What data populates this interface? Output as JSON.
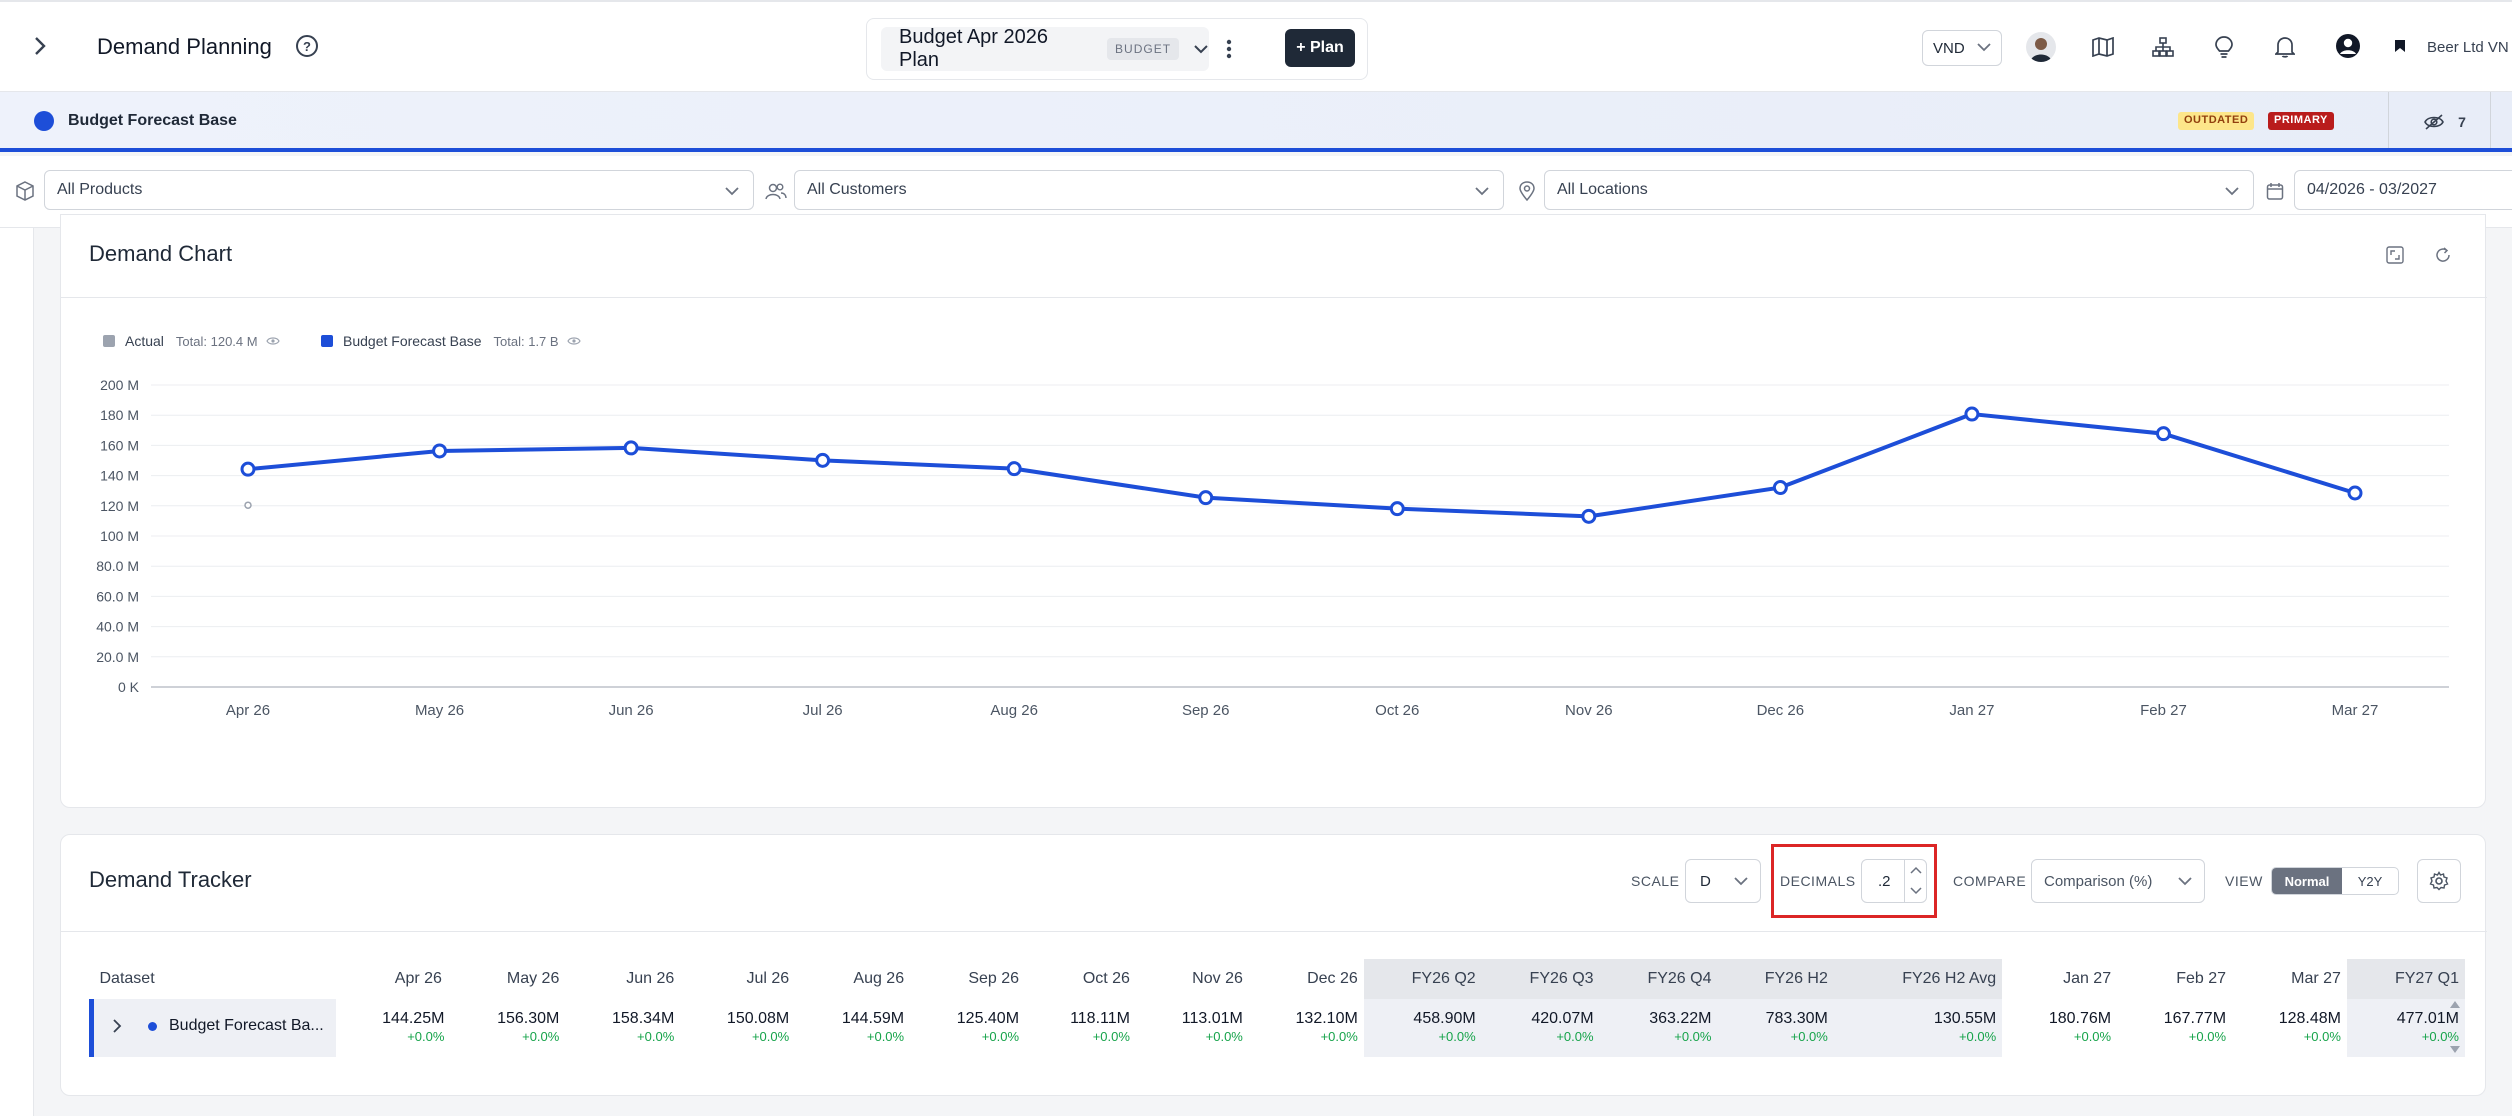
{
  "header": {
    "title": "Demand Planning",
    "plan_name": "Budget Apr 2026 Plan",
    "plan_badge": "BUDGET",
    "add_plan_label": "+ Plan",
    "currency": "VND",
    "company": "Beer Ltd VN"
  },
  "scenario": {
    "name": "Budget Forecast Base",
    "outdated_badge": "OUTDATED",
    "primary_badge": "PRIMARY",
    "hidden_count": "7"
  },
  "filters": {
    "products": "All Products",
    "customers": "All Customers",
    "locations": "All Locations",
    "date_range": "04/2026 - 03/2027"
  },
  "chart_card": {
    "title": "Demand Chart",
    "legend": [
      {
        "name": "Actual",
        "total": "Total: 120.4 M",
        "color": "#9ca3af"
      },
      {
        "name": "Budget Forecast Base",
        "total": "Total: 1.7 B",
        "color": "#1d4ed8"
      }
    ]
  },
  "chart_data": {
    "type": "line",
    "categories": [
      "Apr 26",
      "May 26",
      "Jun 26",
      "Jul 26",
      "Aug 26",
      "Sep 26",
      "Oct 26",
      "Nov 26",
      "Dec 26",
      "Jan 27",
      "Feb 27",
      "Mar 27"
    ],
    "series": [
      {
        "name": "Budget Forecast Base",
        "color": "#1d4ed8",
        "values": [
          144.25,
          156.3,
          158.34,
          150.08,
          144.59,
          125.4,
          118.11,
          113.01,
          132.1,
          180.76,
          167.77,
          128.48
        ]
      },
      {
        "name": "Actual",
        "color": "#9ca3af",
        "values": [
          120.4,
          null,
          null,
          null,
          null,
          null,
          null,
          null,
          null,
          null,
          null,
          null
        ]
      }
    ],
    "y_ticks": [
      "0 K",
      "20.0 M",
      "40.0 M",
      "60.0 M",
      "80.0 M",
      "100 M",
      "120 M",
      "140 M",
      "160 M",
      "180 M",
      "200 M"
    ],
    "ylim": [
      0,
      200
    ],
    "grid": true,
    "legend_position": "top-left"
  },
  "tracker": {
    "title": "Demand Tracker",
    "scale_label": "SCALE",
    "scale_value": "D",
    "decimals_label": "DECIMALS",
    "decimals_value": ".2",
    "compare_label": "COMPARE",
    "compare_value": "Comparison (%)",
    "view_label": "VIEW",
    "view_normal": "Normal",
    "view_y2y": "Y2Y",
    "dataset_header": "Dataset",
    "row_name": "Budget Forecast Ba...",
    "columns": [
      {
        "label": "Apr 26",
        "value": "144.25M",
        "pct": "+0.0%",
        "shade": false
      },
      {
        "label": "May 26",
        "value": "156.30M",
        "pct": "+0.0%",
        "shade": false
      },
      {
        "label": "Jun 26",
        "value": "158.34M",
        "pct": "+0.0%",
        "shade": false
      },
      {
        "label": "Jul 26",
        "value": "150.08M",
        "pct": "+0.0%",
        "shade": false
      },
      {
        "label": "Aug 26",
        "value": "144.59M",
        "pct": "+0.0%",
        "shade": false
      },
      {
        "label": "Sep 26",
        "value": "125.40M",
        "pct": "+0.0%",
        "shade": false
      },
      {
        "label": "Oct 26",
        "value": "118.11M",
        "pct": "+0.0%",
        "shade": false
      },
      {
        "label": "Nov 26",
        "value": "113.01M",
        "pct": "+0.0%",
        "shade": false
      },
      {
        "label": "Dec 26",
        "value": "132.10M",
        "pct": "+0.0%",
        "shade": false
      },
      {
        "label": "FY26 Q2",
        "value": "458.90M",
        "pct": "+0.0%",
        "shade": true
      },
      {
        "label": "FY26 Q3",
        "value": "420.07M",
        "pct": "+0.0%",
        "shade": true
      },
      {
        "label": "FY26 Q4",
        "value": "363.22M",
        "pct": "+0.0%",
        "shade": true
      },
      {
        "label": "FY26 H2",
        "value": "783.30M",
        "pct": "+0.0%",
        "shade": true
      },
      {
        "label": "FY26 H2 Avg",
        "value": "130.55M",
        "pct": "+0.0%",
        "shade": true
      },
      {
        "label": "Jan 27",
        "value": "180.76M",
        "pct": "+0.0%",
        "shade": false
      },
      {
        "label": "Feb 27",
        "value": "167.77M",
        "pct": "+0.0%",
        "shade": false
      },
      {
        "label": "Mar 27",
        "value": "128.48M",
        "pct": "+0.0%",
        "shade": false
      },
      {
        "label": "FY27 Q1",
        "value": "477.01M",
        "pct": "+0.0%",
        "shade": true
      }
    ]
  }
}
